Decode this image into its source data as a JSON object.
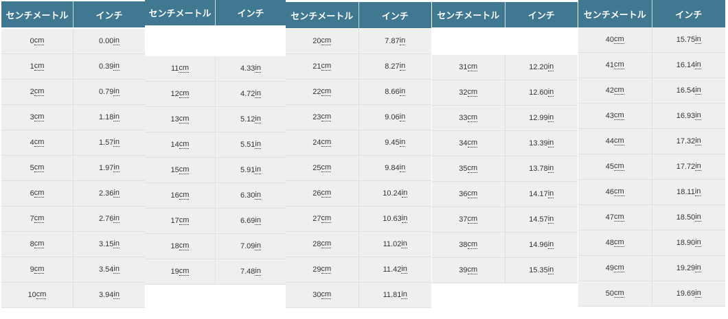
{
  "header": {
    "cm": "センチメートル",
    "inch": "インチ"
  },
  "units": {
    "cm": "cm",
    "in": "in"
  },
  "colors": {
    "header_bg": "#3f7890",
    "row_bg": "#efefef"
  },
  "tables": [
    {
      "rows": [
        [
          "0",
          "0.00"
        ],
        [
          "1",
          "0.39"
        ],
        [
          "2",
          "0.79"
        ],
        [
          "3",
          "1.18"
        ],
        [
          "4",
          "1.57"
        ],
        [
          "5",
          "1.97"
        ],
        [
          "6",
          "2.36"
        ],
        [
          "7",
          "2.76"
        ],
        [
          "8",
          "3.15"
        ],
        [
          "9",
          "3.54"
        ],
        [
          "10",
          "3.94"
        ]
      ]
    },
    {
      "rows": [
        [
          "11",
          "4.33"
        ],
        [
          "12",
          "4.72"
        ],
        [
          "13",
          "5.12"
        ],
        [
          "14",
          "5.51"
        ],
        [
          "15",
          "5.91"
        ],
        [
          "16",
          "6.30"
        ],
        [
          "17",
          "6.69"
        ],
        [
          "18",
          "7.09"
        ],
        [
          "19",
          "7.48"
        ]
      ]
    },
    {
      "rows": [
        [
          "20",
          "7.87"
        ],
        [
          "21",
          "8.27"
        ],
        [
          "22",
          "8.66"
        ],
        [
          "23",
          "9.06"
        ],
        [
          "24",
          "9.45"
        ],
        [
          "25",
          "9.84"
        ],
        [
          "26",
          "10.24"
        ],
        [
          "27",
          "10.63"
        ],
        [
          "28",
          "11.02"
        ],
        [
          "29",
          "11.42"
        ],
        [
          "30",
          "11.81"
        ]
      ]
    },
    {
      "rows": [
        [
          "31",
          "12.20"
        ],
        [
          "32",
          "12.60"
        ],
        [
          "33",
          "12.99"
        ],
        [
          "34",
          "13.39"
        ],
        [
          "35",
          "13.78"
        ],
        [
          "36",
          "14.17"
        ],
        [
          "37",
          "14.57"
        ],
        [
          "38",
          "14.96"
        ],
        [
          "39",
          "15.35"
        ]
      ]
    },
    {
      "rows": [
        [
          "40",
          "15.75"
        ],
        [
          "41",
          "16.14"
        ],
        [
          "42",
          "16.54"
        ],
        [
          "43",
          "16.93"
        ],
        [
          "44",
          "17.32"
        ],
        [
          "45",
          "17.72"
        ],
        [
          "46",
          "18.11"
        ],
        [
          "47",
          "18.50"
        ],
        [
          "48",
          "18.90"
        ],
        [
          "49",
          "19.29"
        ],
        [
          "50",
          "19.69"
        ]
      ]
    }
  ]
}
